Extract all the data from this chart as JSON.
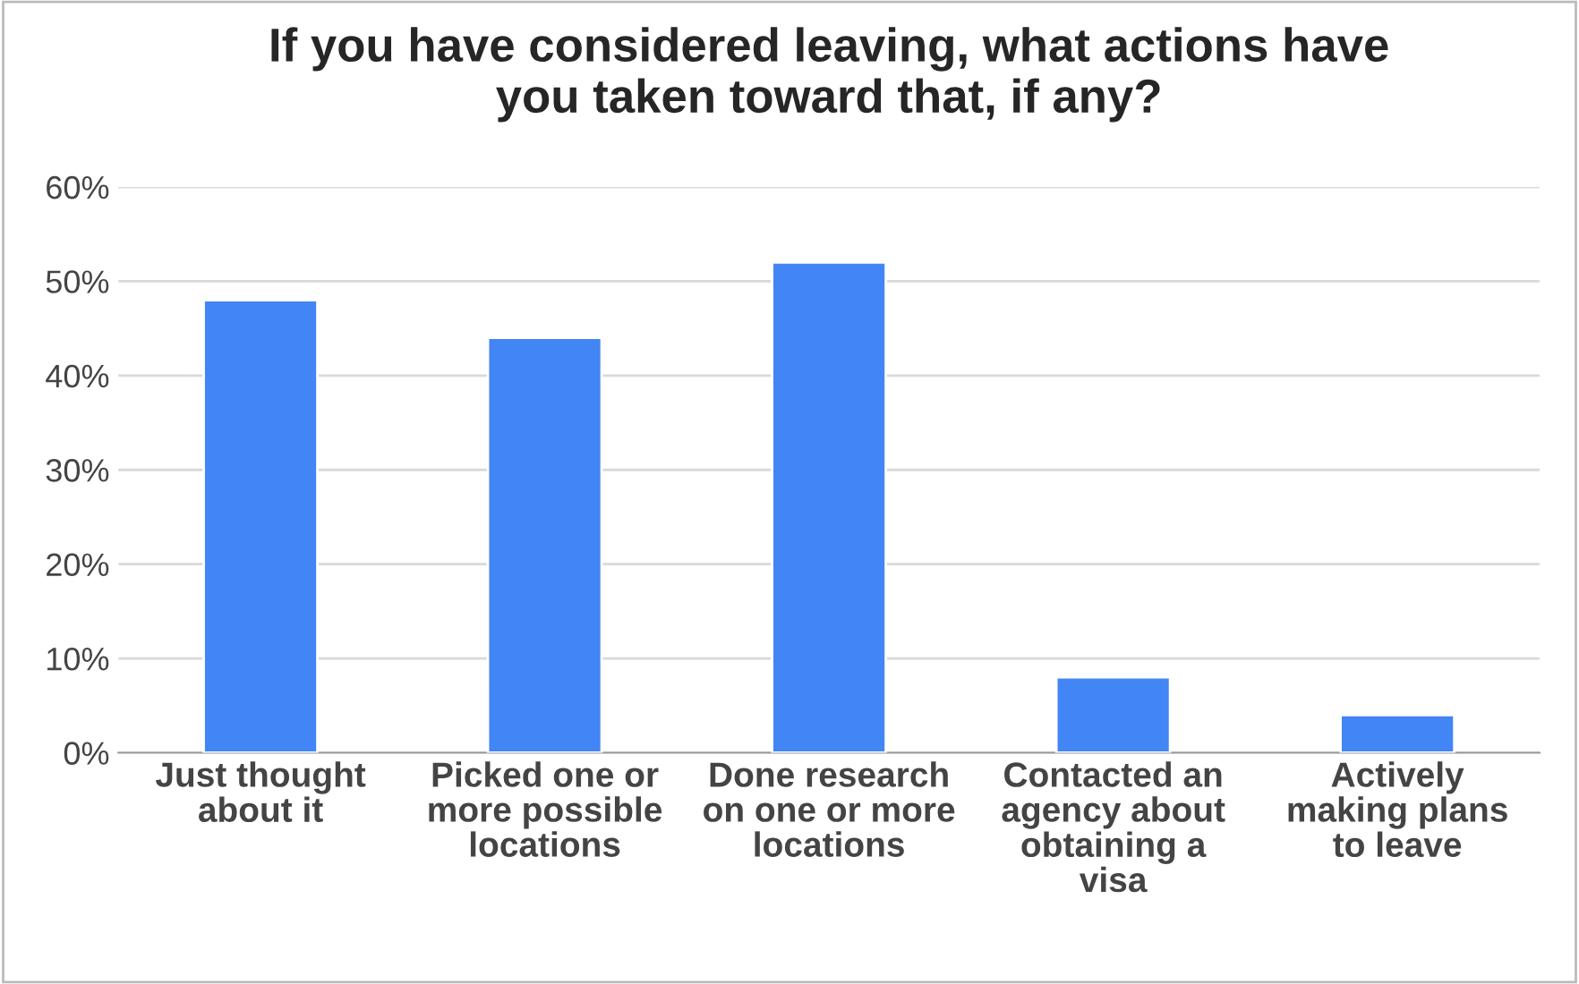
{
  "chart_data": {
    "type": "bar",
    "title": "If you have considered leaving, what actions have\nyou taken toward that, if any?",
    "categories": [
      "Just thought\nabout it",
      "Picked one or\nmore possible\nlocations",
      "Done research\non one or more\nlocations",
      "Contacted an\nagency about\nobtaining a\nvisa",
      "Actively\nmaking plans\nto leave"
    ],
    "values": [
      48,
      44,
      52,
      8,
      4
    ],
    "color": "#4285f4",
    "ylim": [
      0,
      60
    ],
    "yticks": [
      {
        "value": 0,
        "label": "0%"
      },
      {
        "value": 10,
        "label": "10%"
      },
      {
        "value": 20,
        "label": "20%"
      },
      {
        "value": 30,
        "label": "30%"
      },
      {
        "value": 40,
        "label": "40%"
      },
      {
        "value": 50,
        "label": "50%"
      },
      {
        "value": 60,
        "label": "60%"
      }
    ],
    "grid": "y",
    "legend": false
  }
}
